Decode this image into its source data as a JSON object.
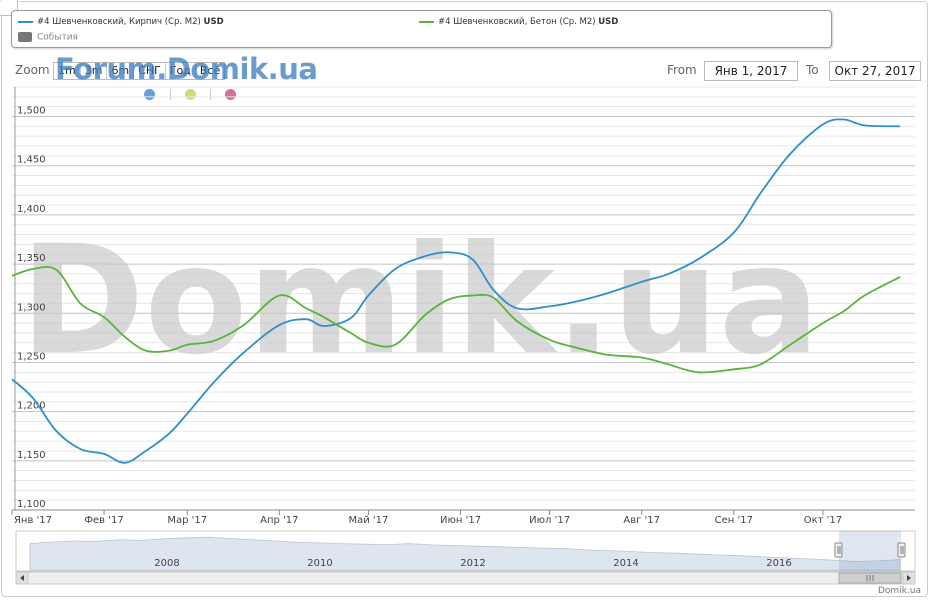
{
  "legend": {
    "series1_text": "#4 Шевченковский, Кирпич (Ср. М2)",
    "series1_unit": "USD",
    "series2_text": "#4 Шевченковский, Бетон (Ср. М2)",
    "series2_unit": "USD",
    "events_label": "События"
  },
  "zoom": {
    "label": "Zoom",
    "buttons": [
      "1m",
      "3m",
      "6m",
      "СНГ",
      "Год",
      "Всё"
    ]
  },
  "range": {
    "from_label": "From",
    "from_value": "Янв 1, 2017",
    "to_label": "To",
    "to_value": "Окт 27, 2017"
  },
  "watermark": {
    "small": "Forum.Domik.ua",
    "big": "Domik.ua"
  },
  "credit": "Domik.ua",
  "colors": {
    "series1": "#2f8fc9",
    "series2": "#58b43c",
    "dot1": "#6a9fd4",
    "dot2": "#cedd7a",
    "dot3": "#d8708f"
  },
  "navigator": {
    "year_labels": [
      "2008",
      "2010",
      "2012",
      "2014",
      "2016"
    ],
    "handle_icon": "grip-icon"
  },
  "chart_data": {
    "type": "line",
    "x_axis": {
      "tick_labels": [
        "Янв '17",
        "Фев '17",
        "Мар '17",
        "Апр '17",
        "Май '17",
        "Июн '17",
        "Июл '17",
        "Авг '17",
        "Сен '17",
        "Окт '17"
      ]
    },
    "y_axis": {
      "ylim": [
        1100,
        1530
      ],
      "tick_labels": [
        1100,
        1150,
        1200,
        1250,
        1300,
        1350,
        1400,
        1450,
        1500
      ],
      "grid": true
    },
    "legend_position": "top",
    "x": [
      "2017-01-01",
      "2017-01-08",
      "2017-01-16",
      "2017-01-24",
      "2017-02-01",
      "2017-02-08",
      "2017-02-15",
      "2017-02-23",
      "2017-03-01",
      "2017-03-10",
      "2017-03-20",
      "2017-04-01",
      "2017-04-10",
      "2017-04-16",
      "2017-04-25",
      "2017-05-01",
      "2017-05-10",
      "2017-05-20",
      "2017-05-28",
      "2017-06-05",
      "2017-06-12",
      "2017-06-20",
      "2017-07-01",
      "2017-07-10",
      "2017-07-20",
      "2017-08-01",
      "2017-08-10",
      "2017-08-20",
      "2017-09-01",
      "2017-09-10",
      "2017-09-20",
      "2017-10-01",
      "2017-10-08",
      "2017-10-15",
      "2017-10-27"
    ],
    "series": [
      {
        "name": "#4 Шевченковский, Кирпич (Ср. М2)",
        "values": [
          1233,
          1214,
          1180,
          1162,
          1157,
          1148,
          1160,
          1178,
          1198,
          1230,
          1260,
          1288,
          1294,
          1287,
          1295,
          1318,
          1345,
          1358,
          1362,
          1355,
          1324,
          1305,
          1307,
          1312,
          1320,
          1332,
          1340,
          1355,
          1382,
          1422,
          1462,
          1492,
          1497,
          1491,
          1490
        ]
      },
      {
        "name": "#4 Шевченковский, Бетон (Ср. М2)",
        "values": [
          1338,
          1345,
          1344,
          1310,
          1296,
          1276,
          1262,
          1262,
          1268,
          1272,
          1288,
          1318,
          1305,
          1296,
          1280,
          1270,
          1268,
          1298,
          1314,
          1318,
          1316,
          1292,
          1273,
          1265,
          1258,
          1255,
          1248,
          1240,
          1243,
          1248,
          1268,
          1290,
          1302,
          1318,
          1337
        ]
      }
    ]
  }
}
